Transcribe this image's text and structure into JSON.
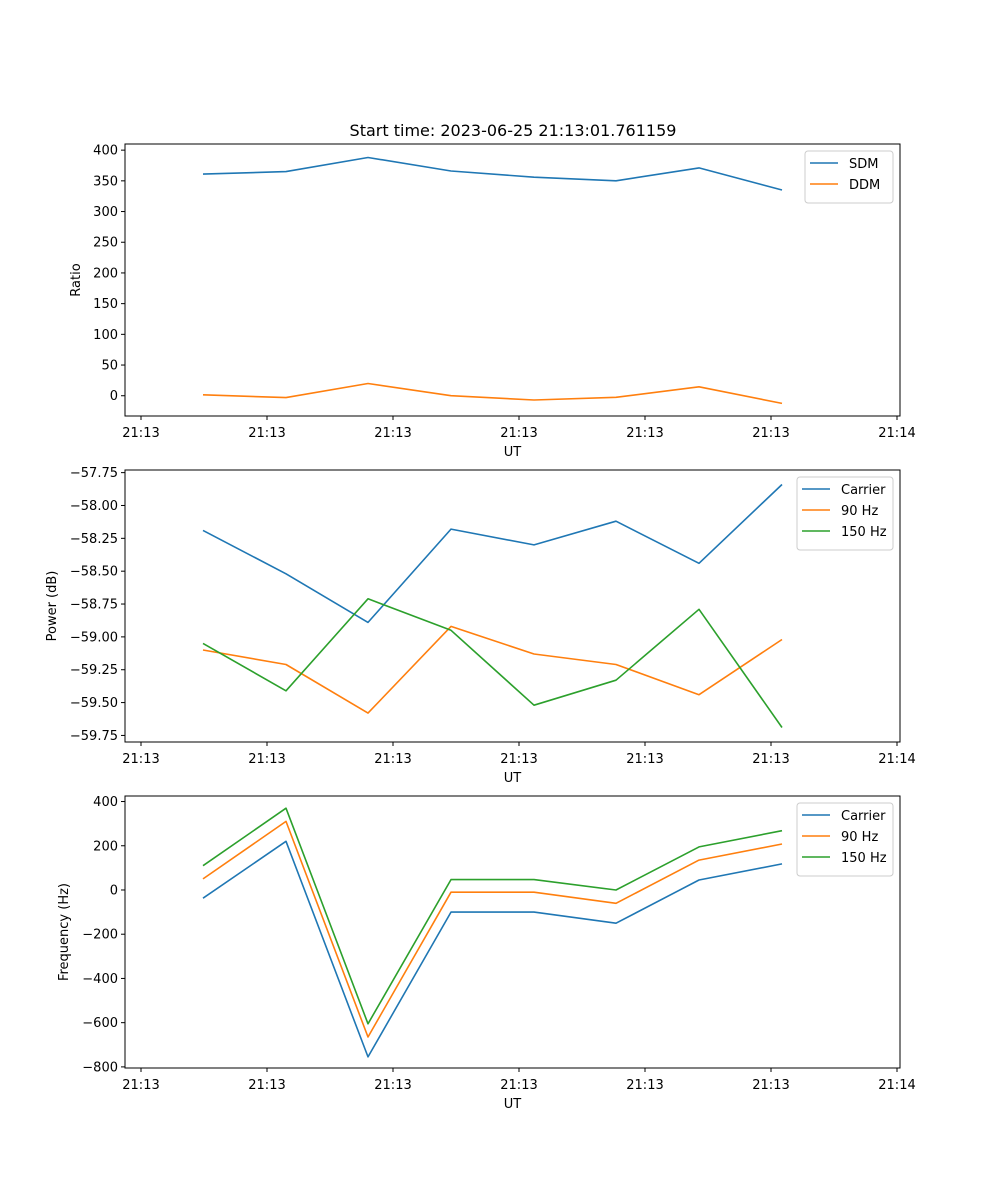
{
  "figure": {
    "title": "Start time: 2023-06-25 21:13:01.761159"
  },
  "colors": {
    "blue": "#1f77b4",
    "orange": "#ff7f0e",
    "green": "#2ca02c"
  },
  "chart_data": [
    {
      "type": "line",
      "xlabel": "UT",
      "ylabel": "Ratio",
      "ylim": [
        -33,
        410
      ],
      "xticks": [
        "21:13",
        "21:13",
        "21:13",
        "21:13",
        "21:13",
        "21:13",
        "21:14"
      ],
      "yticks": [
        "0",
        "50",
        "100",
        "150",
        "200",
        "250",
        "300",
        "350",
        "400"
      ],
      "legend_position": "upper-right",
      "series": [
        {
          "name": "SDM",
          "color": "#1f77b4",
          "values": [
            361,
            365,
            388,
            366,
            356,
            350,
            371,
            335
          ]
        },
        {
          "name": "DDM",
          "color": "#ff7f0e",
          "values": [
            1.5,
            -3,
            20,
            0,
            -7,
            -2.5,
            14.5,
            -12.5
          ]
        }
      ]
    },
    {
      "type": "line",
      "xlabel": "UT",
      "ylabel": "Power (dB)",
      "ylim": [
        -59.8,
        -57.73
      ],
      "xticks": [
        "21:13",
        "21:13",
        "21:13",
        "21:13",
        "21:13",
        "21:13",
        "21:14"
      ],
      "yticks": [
        "−59.75",
        "−59.50",
        "−59.25",
        "−59.00",
        "−58.75",
        "−58.50",
        "−58.25",
        "−58.00",
        "−57.75"
      ],
      "legend_position": "upper-right",
      "series": [
        {
          "name": "Carrier",
          "color": "#1f77b4",
          "values": [
            -58.19,
            -58.52,
            -58.89,
            -58.18,
            -58.3,
            -58.12,
            -58.44,
            -57.84
          ]
        },
        {
          "name": "90 Hz",
          "color": "#ff7f0e",
          "values": [
            -59.1,
            -59.21,
            -59.58,
            -58.92,
            -59.13,
            -59.21,
            -59.44,
            -59.02
          ]
        },
        {
          "name": "150 Hz",
          "color": "#2ca02c",
          "values": [
            -59.05,
            -59.41,
            -58.71,
            -58.95,
            -59.52,
            -59.33,
            -58.79,
            -59.69
          ]
        }
      ]
    },
    {
      "type": "line",
      "xlabel": "UT",
      "ylabel": "Frequency (Hz)",
      "ylim": [
        -805,
        425
      ],
      "xticks": [
        "21:13",
        "21:13",
        "21:13",
        "21:13",
        "21:13",
        "21:13",
        "21:14"
      ],
      "yticks": [
        "−800",
        "−600",
        "−400",
        "−200",
        "0",
        "200",
        "400"
      ],
      "legend_position": "upper-right",
      "series": [
        {
          "name": "Carrier",
          "color": "#1f77b4",
          "values": [
            -37,
            220,
            -755,
            -100,
            -100,
            -150,
            45,
            118
          ]
        },
        {
          "name": "90 Hz",
          "color": "#ff7f0e",
          "values": [
            50,
            310,
            -665,
            -10,
            -10,
            -60,
            135,
            208
          ]
        },
        {
          "name": "150 Hz",
          "color": "#2ca02c",
          "values": [
            110,
            370,
            -605,
            47,
            47,
            0,
            195,
            268
          ]
        }
      ]
    }
  ]
}
